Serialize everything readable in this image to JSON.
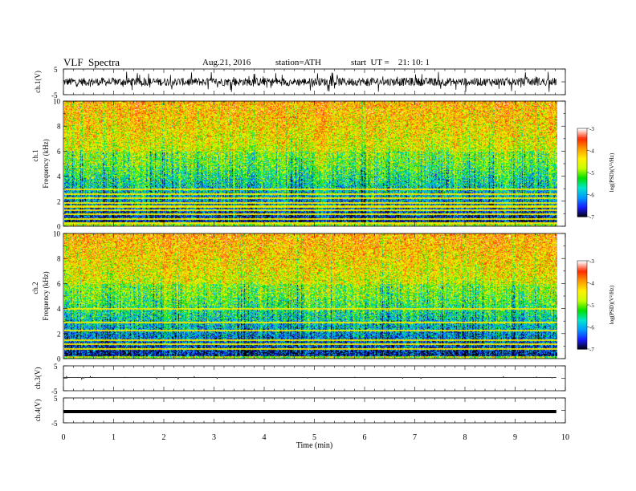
{
  "header": {
    "title": "VLF  Spectra",
    "date": "Aug.21, 2016",
    "station": "station=ATH",
    "start": "start  UT =    21: 10: 1"
  },
  "chart_data": [
    {
      "type": "line",
      "panel": "ch1-waveform",
      "ylabel": "ch.1(V)",
      "yticks": [
        "5",
        "-5"
      ],
      "ylim": [
        -5,
        5
      ],
      "xlim": [
        0,
        10
      ],
      "description_values": "dense broadband noise signal, amplitude mostly within about ±2 V with spikes near ±4 V"
    },
    {
      "type": "heatmap",
      "panel": "ch1-spectrogram",
      "ylabel": "Frequency  (kHz)",
      "ylabel2": "ch.1",
      "yticks": [
        "0",
        "2",
        "4",
        "6",
        "8",
        "10"
      ],
      "ylim": [
        0,
        10
      ],
      "xlim": [
        0,
        9.8
      ],
      "colorbar": {
        "label": "log(PSD)(V²/Hz)",
        "ticks": [
          "-3",
          "-4",
          "-5",
          "-6",
          "-7"
        ],
        "range": [
          -7,
          -3
        ]
      },
      "lines_khz": [
        0.3,
        0.6,
        1.0,
        1.3,
        1.6,
        1.9,
        2.3,
        2.6,
        3.0
      ]
    },
    {
      "type": "heatmap",
      "panel": "ch2-spectrogram",
      "ylabel": "Frequency  (kHz)",
      "ylabel2": "ch.2",
      "yticks": [
        "0",
        "2",
        "4",
        "6",
        "8",
        "10"
      ],
      "ylim": [
        0,
        10
      ],
      "xlim": [
        0,
        9.8
      ],
      "colorbar": {
        "label": "log(PSD)(V²/Hz)",
        "ticks": [
          "-3",
          "-4",
          "-5",
          "-6",
          "-7"
        ],
        "range": [
          -7,
          -3
        ]
      },
      "lines_khz": [
        0.8,
        1.2,
        1.5,
        2.3,
        2.9,
        4.0
      ]
    },
    {
      "type": "line",
      "panel": "ch3-waveform",
      "ylabel": "ch.3(V)",
      "yticks": [
        "5",
        "-5"
      ],
      "ylim": [
        -5,
        5
      ],
      "xlim": [
        0,
        10
      ],
      "description_values": "flat near 0 V with sparse small spikes"
    },
    {
      "type": "line",
      "panel": "ch4-waveform",
      "ylabel": "ch.4(V)",
      "yticks": [
        "5",
        "-5"
      ],
      "ylim": [
        -5,
        5
      ],
      "xlim": [
        0,
        10
      ],
      "description_values": "thick constant trace near -0.5 V"
    }
  ],
  "xaxis": {
    "label": "Time  (min)",
    "ticks": [
      "0",
      "1",
      "2",
      "3",
      "4",
      "5",
      "6",
      "7",
      "8",
      "9",
      "10"
    ],
    "range": [
      0,
      10
    ]
  },
  "colors": {
    "cmap": [
      "#000000",
      "#1a1aff",
      "#0099ff",
      "#00e5cc",
      "#00e000",
      "#c8ff00",
      "#ffee00",
      "#ff9900",
      "#ff2a00",
      "#ffffff"
    ]
  }
}
